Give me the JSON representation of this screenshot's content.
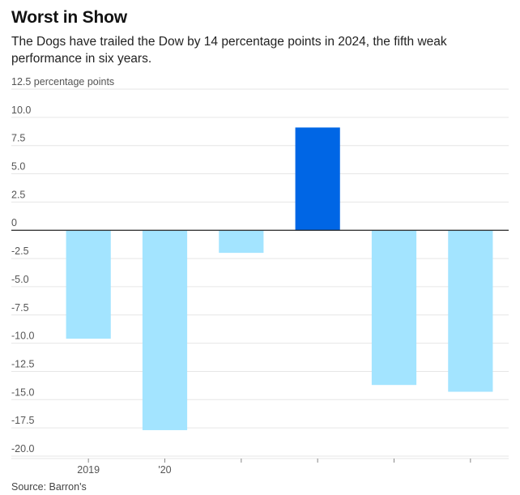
{
  "header": {
    "title": "Worst in Show",
    "subtitle": "The Dogs have trailed the Dow by 14 percentage points in 2024, the fifth weak performance in six years."
  },
  "footer": {
    "source": "Source: Barron's"
  },
  "colors": {
    "highlight": "#0066E5",
    "normal": "#A3E4FF",
    "grid": "#E6E6E6",
    "zero_line": "#222222",
    "tick_text": "#555555"
  },
  "chart_data": {
    "type": "bar",
    "title": "Worst in Show",
    "xlabel": "",
    "ylabel": "percentage points",
    "ylim": [
      -20,
      12.5
    ],
    "yticks": [
      {
        "value": 12.5,
        "label": "12.5 percentage points"
      },
      {
        "value": 10,
        "label": "10.0"
      },
      {
        "value": 7.5,
        "label": "7.5"
      },
      {
        "value": 5,
        "label": "5.0"
      },
      {
        "value": 2.5,
        "label": "2.5"
      },
      {
        "value": 0,
        "label": "0"
      },
      {
        "value": -2.5,
        "label": "-2.5"
      },
      {
        "value": -5,
        "label": "-5.0"
      },
      {
        "value": -7.5,
        "label": "-7.5"
      },
      {
        "value": -10,
        "label": "-10.0"
      },
      {
        "value": -12.5,
        "label": "-12.5"
      },
      {
        "value": -15,
        "label": "-15.0"
      },
      {
        "value": -17.5,
        "label": "-17.5"
      },
      {
        "value": -20,
        "label": "-20.0"
      }
    ],
    "categories": [
      "2019",
      "'20",
      "",
      "",
      "",
      ""
    ],
    "values": [
      -9.6,
      -17.7,
      -2.0,
      9.1,
      -13.7,
      -14.3
    ],
    "highlight_index": 3,
    "grid": true
  }
}
